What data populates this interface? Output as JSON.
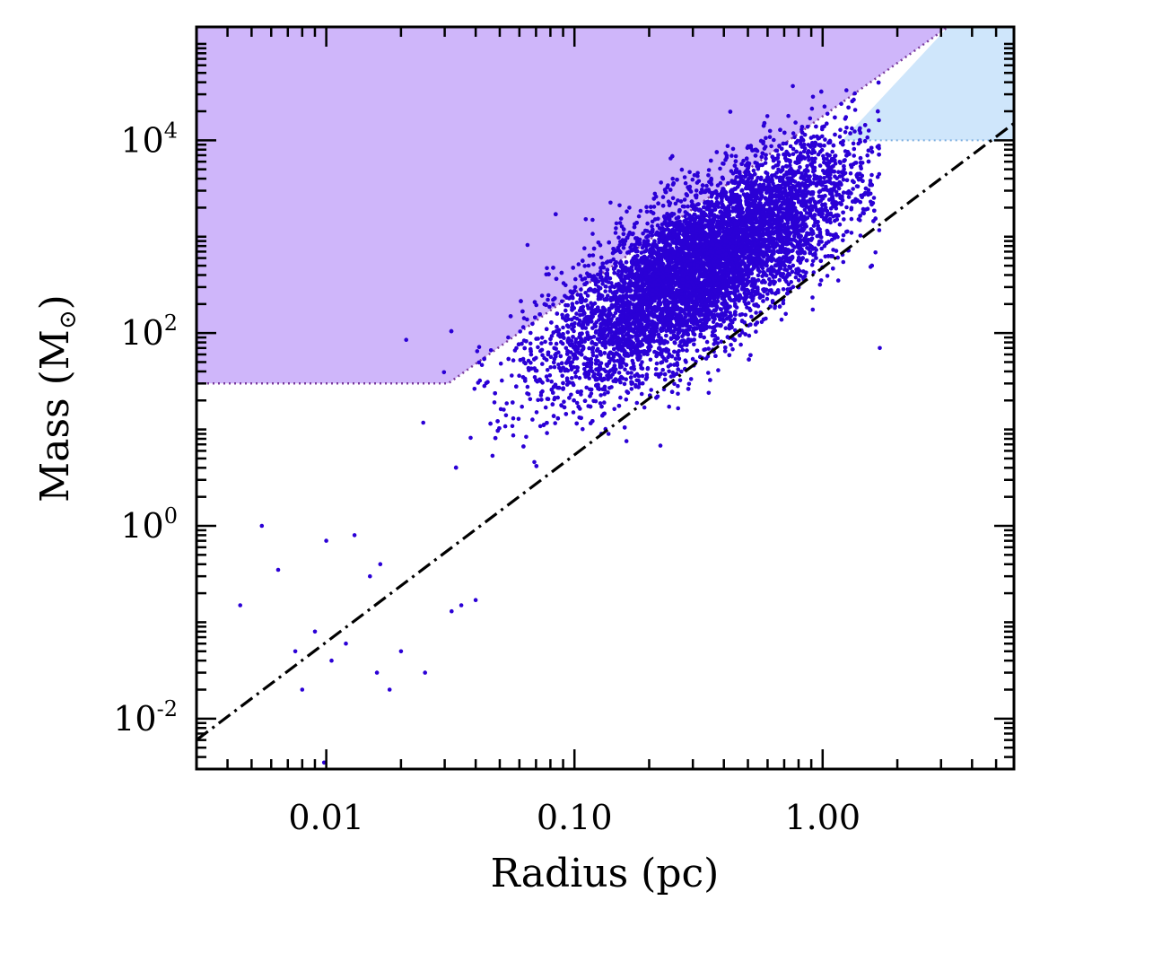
{
  "chart_data": {
    "type": "scatter",
    "title": "",
    "xlabel": "Radius (pc)",
    "ylabel_prefix": "Mass (M",
    "ylabel_subscript": "⊙",
    "ylabel_suffix": ")",
    "x_scale": "log",
    "y_scale": "log",
    "xlim": [
      0.003,
      5.9
    ],
    "ylim": [
      0.003,
      150000
    ],
    "x_tick_labels": [
      {
        "value": 0.01,
        "label": "0.01"
      },
      {
        "value": 0.1,
        "label": "0.10"
      },
      {
        "value": 1.0,
        "label": "1.00"
      }
    ],
    "y_tick_labels": [
      {
        "value": 0.01,
        "base": "10",
        "exp": "-2"
      },
      {
        "value": 1,
        "base": "10",
        "exp": "0"
      },
      {
        "value": 100,
        "base": "10",
        "exp": "2"
      },
      {
        "value": 10000,
        "base": "10",
        "exp": "4"
      }
    ],
    "grid": false,
    "legend": "none",
    "colors": {
      "points": "#2b00d6",
      "region_purple": "#cfb6fa",
      "region_blue": "#cfe6fb",
      "fit_line": "#000000",
      "boundary_purple": "#7a3a9c",
      "boundary_blue": "#7aaee0"
    },
    "regions": [
      {
        "name": "purple-region",
        "color": "#cfb6fa",
        "boundary": [
          [
            0.003,
            30
          ],
          [
            0.031,
            30
          ],
          [
            3.2,
            150000
          ],
          [
            0.003,
            150000
          ]
        ]
      },
      {
        "name": "blue-region",
        "color": "#cfe6fb",
        "boundary": [
          [
            1.2,
            10000
          ],
          [
            3.2,
            150000
          ],
          [
            5.9,
            150000
          ],
          [
            5.9,
            10000
          ]
        ]
      }
    ],
    "fit_line": {
      "style": "dash-dot",
      "points": [
        [
          0.003,
          0.006
        ],
        [
          5.9,
          15000
        ]
      ]
    },
    "scatter": {
      "count": 9000,
      "center": [
        0.33,
        500
      ],
      "color": "#2b00d6",
      "x_range": [
        0.0045,
        1.7
      ],
      "y_range": [
        0.003,
        80000
      ],
      "outlier_points": [
        [
          0.0045,
          0.15
        ],
        [
          0.0055,
          1.0
        ],
        [
          0.0064,
          0.35
        ],
        [
          0.0075,
          0.05
        ],
        [
          0.008,
          0.02
        ],
        [
          0.009,
          0.08
        ],
        [
          0.01,
          0.7
        ],
        [
          0.0105,
          0.04
        ],
        [
          0.012,
          0.06
        ],
        [
          0.013,
          0.8
        ],
        [
          0.015,
          0.3
        ],
        [
          0.016,
          0.03
        ],
        [
          0.0165,
          0.4
        ],
        [
          0.018,
          0.02
        ],
        [
          0.02,
          0.05
        ],
        [
          0.021,
          85
        ],
        [
          0.025,
          0.03
        ],
        [
          0.032,
          0.13
        ],
        [
          0.035,
          0.15
        ],
        [
          0.04,
          0.17
        ],
        [
          0.0098,
          0.0035
        ],
        [
          1.7,
          70
        ]
      ]
    }
  }
}
